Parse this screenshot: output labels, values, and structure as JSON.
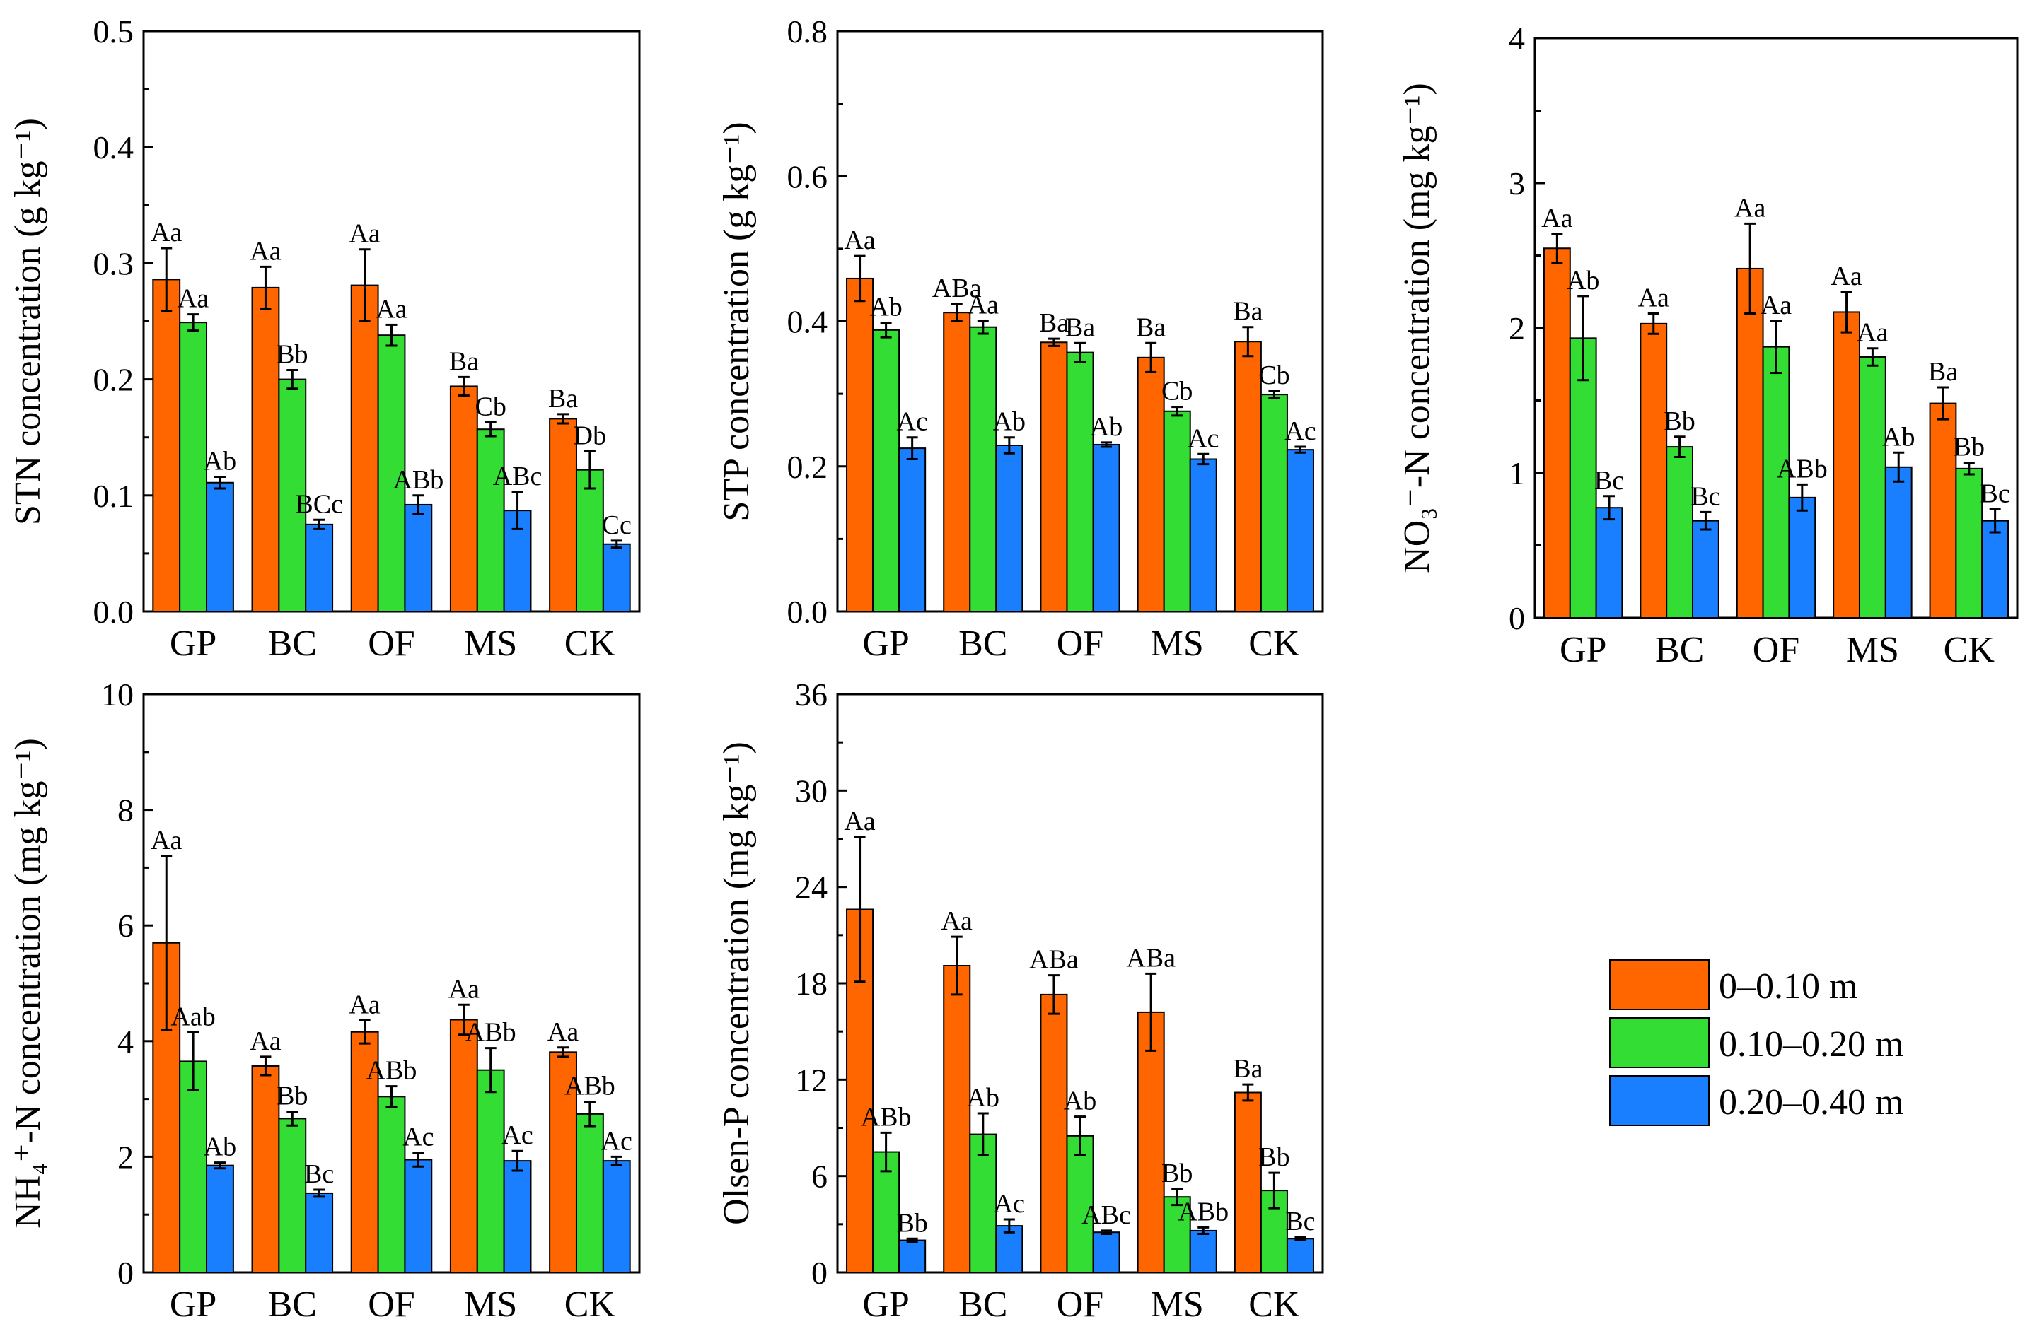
{
  "legend": {
    "entries": [
      {
        "label": "0–0.10 m",
        "color": "#FF6600"
      },
      {
        "label": "0.10–0.20 m",
        "color": "#33DD33"
      },
      {
        "label": "0.20–0.40 m",
        "color": "#1A7FFF"
      }
    ]
  },
  "chart_data": [
    {
      "type": "bar",
      "ylabel": "STN concentration (g kg⁻¹)",
      "categories": [
        "GP",
        "BC",
        "OF",
        "MS",
        "CK"
      ],
      "ylim": [
        0,
        0.5
      ],
      "yticks": [
        "0.0",
        "0.1",
        "0.2",
        "0.3",
        "0.4",
        "0.5"
      ],
      "series": [
        {
          "name": "0–0.10 m",
          "values": [
            0.286,
            0.279,
            0.281,
            0.194,
            0.166
          ],
          "errors": [
            0.027,
            0.018,
            0.031,
            0.008,
            0.004
          ],
          "labels": [
            "Aa",
            "Aa",
            "Aa",
            "Ba",
            "Ba"
          ]
        },
        {
          "name": "0.10–0.20 m",
          "values": [
            0.249,
            0.2,
            0.238,
            0.157,
            0.122
          ],
          "errors": [
            0.007,
            0.008,
            0.009,
            0.006,
            0.016
          ],
          "labels": [
            "Aa",
            "Bb",
            "Aa",
            "Cb",
            "Db"
          ]
        },
        {
          "name": "0.20–0.40 m",
          "values": [
            0.111,
            0.075,
            0.092,
            0.087,
            0.058
          ],
          "errors": [
            0.005,
            0.004,
            0.008,
            0.016,
            0.003
          ],
          "labels": [
            "Ab",
            "BCc",
            "ABb",
            "ABc",
            "Cc"
          ]
        }
      ]
    },
    {
      "type": "bar",
      "ylabel": "STP concentration (g kg⁻¹)",
      "categories": [
        "GP",
        "BC",
        "OF",
        "MS",
        "CK"
      ],
      "ylim": [
        0,
        0.8
      ],
      "yticks": [
        "0.0",
        "0.2",
        "0.4",
        "0.6",
        "0.8"
      ],
      "series": [
        {
          "name": "0–0.10 m",
          "values": [
            0.459,
            0.412,
            0.371,
            0.35,
            0.372
          ],
          "errors": [
            0.031,
            0.012,
            0.005,
            0.02,
            0.02
          ],
          "labels": [
            "Aa",
            "ABa",
            "Ba",
            "Ba",
            "Ba"
          ]
        },
        {
          "name": "0.10–0.20 m",
          "values": [
            0.388,
            0.392,
            0.357,
            0.276,
            0.299
          ],
          "errors": [
            0.01,
            0.009,
            0.013,
            0.006,
            0.005
          ],
          "labels": [
            "Ab",
            "Aa",
            "Ba",
            "Cb",
            "Cb"
          ]
        },
        {
          "name": "0.20–0.40 m",
          "values": [
            0.225,
            0.229,
            0.23,
            0.21,
            0.223
          ],
          "errors": [
            0.015,
            0.011,
            0.003,
            0.007,
            0.004
          ],
          "labels": [
            "Ac",
            "Ab",
            "Ab",
            "Ac",
            "Ac"
          ]
        }
      ]
    },
    {
      "type": "bar",
      "ylabel": "NO₃⁻-N concentration (mg kg⁻¹)",
      "categories": [
        "GP",
        "BC",
        "OF",
        "MS",
        "CK"
      ],
      "ylim": [
        0,
        4
      ],
      "yticks": [
        "0",
        "1",
        "2",
        "3",
        "4"
      ],
      "series": [
        {
          "name": "0–0.10 m",
          "values": [
            2.55,
            2.03,
            2.41,
            2.11,
            1.48
          ],
          "errors": [
            0.1,
            0.07,
            0.31,
            0.14,
            0.11
          ],
          "labels": [
            "Aa",
            "Aa",
            "Aa",
            "Aa",
            "Ba"
          ]
        },
        {
          "name": "0.10–0.20 m",
          "values": [
            1.93,
            1.18,
            1.87,
            1.8,
            1.03
          ],
          "errors": [
            0.29,
            0.07,
            0.18,
            0.06,
            0.04
          ],
          "labels": [
            "Ab",
            "Bb",
            "Aa",
            "Aa",
            "Bb"
          ]
        },
        {
          "name": "0.20–0.40 m",
          "values": [
            0.76,
            0.67,
            0.83,
            1.04,
            0.67
          ],
          "errors": [
            0.08,
            0.06,
            0.09,
            0.1,
            0.08
          ],
          "labels": [
            "Bc",
            "Bc",
            "ABb",
            "Ab",
            "Bc"
          ]
        }
      ]
    },
    {
      "type": "bar",
      "ylabel": "NH₄⁺-N concentration (mg kg⁻¹)",
      "categories": [
        "GP",
        "BC",
        "OF",
        "MS",
        "CK"
      ],
      "ylim": [
        0,
        10
      ],
      "yticks": [
        "0",
        "2",
        "4",
        "6",
        "8",
        "10"
      ],
      "series": [
        {
          "name": "0–0.10 m",
          "values": [
            5.7,
            3.57,
            4.16,
            4.37,
            3.81
          ],
          "errors": [
            1.5,
            0.16,
            0.2,
            0.26,
            0.08
          ],
          "labels": [
            "Aa",
            "Aa",
            "Aa",
            "Aa",
            "Aa"
          ]
        },
        {
          "name": "0.10–0.20 m",
          "values": [
            3.65,
            2.66,
            3.04,
            3.5,
            2.74
          ],
          "errors": [
            0.5,
            0.12,
            0.18,
            0.38,
            0.21
          ],
          "labels": [
            "Aab",
            "Bb",
            "ABb",
            "ABb",
            "ABb"
          ]
        },
        {
          "name": "0.20–0.40 m",
          "values": [
            1.85,
            1.37,
            1.95,
            1.93,
            1.93
          ],
          "errors": [
            0.05,
            0.06,
            0.12,
            0.17,
            0.07
          ],
          "labels": [
            "Ab",
            "Bc",
            "Ac",
            "Ac",
            "Ac"
          ]
        }
      ]
    },
    {
      "type": "bar",
      "ylabel": "Olsen-P concentration (mg kg⁻¹)",
      "categories": [
        "GP",
        "BC",
        "OF",
        "MS",
        "CK"
      ],
      "ylim": [
        0,
        36
      ],
      "yticks": [
        "0",
        "6",
        "12",
        "18",
        "24",
        "30",
        "36"
      ],
      "series": [
        {
          "name": "0–0.10 m",
          "values": [
            22.6,
            19.1,
            17.3,
            16.2,
            11.2
          ],
          "errors": [
            4.5,
            1.8,
            1.2,
            2.4,
            0.5
          ],
          "labels": [
            "Aa",
            "Aa",
            "ABa",
            "ABa",
            "Ba"
          ]
        },
        {
          "name": "0.10–0.20 m",
          "values": [
            7.5,
            8.6,
            8.5,
            4.7,
            5.1
          ],
          "errors": [
            1.2,
            1.3,
            1.2,
            0.5,
            1.1
          ],
          "labels": [
            "ABb",
            "Ab",
            "Ab",
            "Bb",
            "Bb"
          ]
        },
        {
          "name": "0.20–0.40 m",
          "values": [
            2.0,
            2.9,
            2.5,
            2.6,
            2.1
          ],
          "errors": [
            0.1,
            0.4,
            0.1,
            0.2,
            0.1
          ],
          "labels": [
            "Bb",
            "Ac",
            "ABc",
            "ABb",
            "Bc"
          ]
        }
      ]
    }
  ]
}
